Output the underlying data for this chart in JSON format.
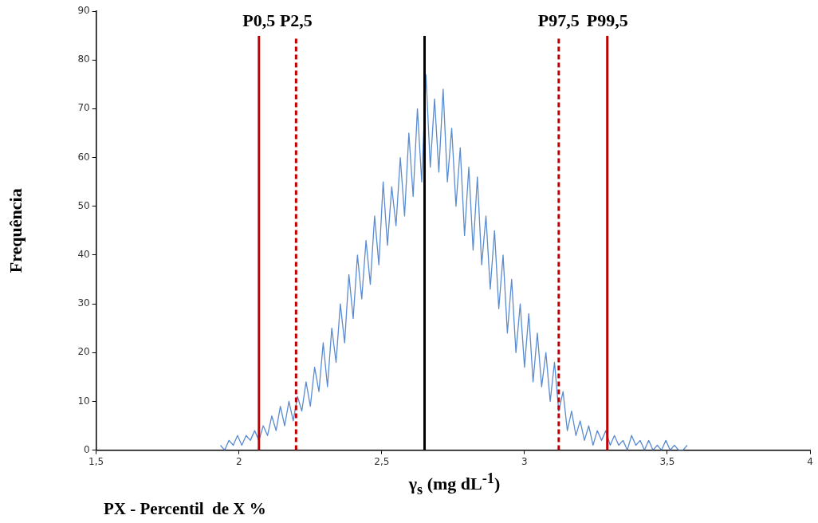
{
  "chart_data": {
    "type": "line",
    "xlabel": "γ$_{s}$ (mg dL$^{-1}$)",
    "ylabel": "Frequência",
    "annotations": [
      "PX - Percentil  de X %"
    ],
    "xlim": [
      1.5,
      4
    ],
    "xticks": [
      {
        "value": 1.5,
        "label": "1,5"
      },
      2,
      {
        "value": 2.5,
        "label": "2,5"
      },
      3,
      {
        "value": 3.5,
        "label": "3,5"
      },
      4
    ],
    "ylim": [
      0,
      90
    ],
    "yticks": [
      0,
      10,
      20,
      30,
      40,
      50,
      60,
      70,
      80,
      90
    ],
    "grid": false,
    "legend": false,
    "marker": "none",
    "line_style": "solid",
    "ref_lines": [
      {
        "axis": "x",
        "value": 2.07,
        "label": "P0,5",
        "color": "#c00000",
        "line_style": "solid"
      },
      {
        "axis": "x",
        "value": 2.2,
        "label": "P2,5",
        "color": "#c00000",
        "line_style": "dashed"
      },
      {
        "axis": "x",
        "value": 2.65,
        "color": "#000000",
        "line_style": "solid"
      },
      {
        "axis": "x",
        "value": 3.12,
        "label": "P97,5",
        "color": "#c00000",
        "line_style": "dashed"
      },
      {
        "axis": "x",
        "value": 3.29,
        "label": "P99,5",
        "color": "#c00000",
        "line_style": "solid"
      }
    ],
    "series": [
      {
        "color": "#5b8bd0",
        "x": [
          1.935,
          1.95,
          1.965,
          1.98,
          1.995,
          2.01,
          2.025,
          2.04,
          2.055,
          2.07,
          2.085,
          2.1,
          2.115,
          2.13,
          2.145,
          2.16,
          2.175,
          2.19,
          2.205,
          2.22,
          2.235,
          2.25,
          2.265,
          2.28,
          2.295,
          2.31,
          2.325,
          2.34,
          2.355,
          2.37,
          2.385,
          2.4,
          2.415,
          2.43,
          2.445,
          2.46,
          2.475,
          2.49,
          2.505,
          2.52,
          2.535,
          2.55,
          2.565,
          2.58,
          2.595,
          2.61,
          2.625,
          2.64,
          2.655,
          2.67,
          2.685,
          2.7,
          2.715,
          2.73,
          2.745,
          2.76,
          2.775,
          2.79,
          2.805,
          2.82,
          2.835,
          2.85,
          2.865,
          2.88,
          2.895,
          2.91,
          2.925,
          2.94,
          2.955,
          2.97,
          2.985,
          3.0,
          3.015,
          3.03,
          3.045,
          3.06,
          3.075,
          3.09,
          3.105,
          3.12,
          3.135,
          3.15,
          3.165,
          3.18,
          3.195,
          3.21,
          3.225,
          3.24,
          3.255,
          3.27,
          3.285,
          3.3,
          3.315,
          3.33,
          3.345,
          3.36,
          3.375,
          3.39,
          3.405,
          3.42,
          3.435,
          3.45,
          3.465,
          3.48,
          3.495,
          3.51,
          3.525,
          3.54,
          3.555,
          3.57
        ],
        "values": [
          1,
          0,
          2,
          1,
          3,
          1,
          3,
          2,
          4,
          2,
          5,
          3,
          7,
          4,
          9,
          5,
          10,
          6,
          11,
          8,
          14,
          9,
          17,
          12,
          22,
          13,
          25,
          18,
          30,
          22,
          36,
          27,
          40,
          31,
          43,
          34,
          48,
          38,
          55,
          42,
          54,
          46,
          60,
          48,
          65,
          52,
          70,
          55,
          77,
          58,
          72,
          57,
          74,
          55,
          66,
          50,
          62,
          44,
          58,
          41,
          56,
          38,
          48,
          33,
          45,
          29,
          40,
          24,
          35,
          20,
          30,
          17,
          28,
          14,
          24,
          13,
          20,
          10,
          18,
          8,
          12,
          4,
          8,
          3,
          6,
          2,
          5,
          1,
          4,
          2,
          4,
          1,
          3,
          1,
          2,
          0,
          3,
          1,
          2,
          0,
          2,
          0,
          1,
          0,
          2,
          0,
          1,
          0,
          0,
          1
        ]
      }
    ]
  }
}
